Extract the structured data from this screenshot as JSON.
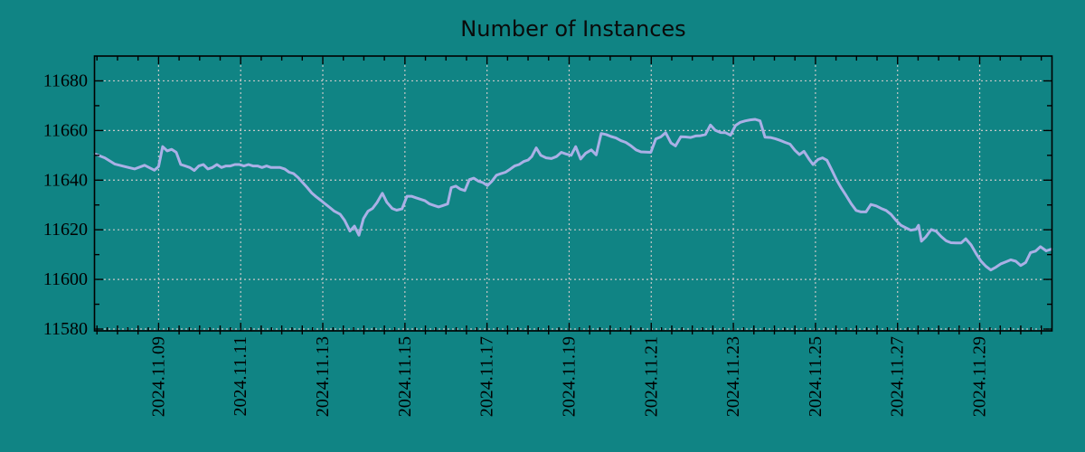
{
  "title": "Number of Instances",
  "colors": {
    "background": "#108484",
    "line": "#aab0e6",
    "grid": "#c8c8c8",
    "axis": "#000000",
    "text": "#000000"
  },
  "chart_data": {
    "type": "line",
    "title": "Number of Instances",
    "xlabel": "",
    "ylabel": "",
    "x_unit": "date (fractional day of November 2024)",
    "xlim": [
      7.45,
      30.75
    ],
    "ylim": [
      11580,
      11690
    ],
    "grid": true,
    "grid_style": "dashed",
    "legend_position": "none",
    "x_major_ticks": [
      9,
      11,
      13,
      15,
      17,
      19,
      21,
      23,
      25,
      27,
      29
    ],
    "x_tick_labels": [
      "2024.11.09",
      "2024.11.11",
      "2024.11.13",
      "2024.11.15",
      "2024.11.17",
      "2024.11.19",
      "2024.11.21",
      "2024.11.23",
      "2024.11.25",
      "2024.11.27",
      "2024.11.29"
    ],
    "x_minor_step": 0.25,
    "y_major_ticks": [
      11580,
      11600,
      11620,
      11640,
      11660,
      11680
    ],
    "y_tick_labels": [
      "11580",
      "11600",
      "11620",
      "11640",
      "11660",
      "11680"
    ],
    "y_minor_step": 10,
    "series": [
      {
        "name": "instances",
        "x": [
          7.45,
          7.69,
          7.93,
          8.17,
          8.42,
          8.66,
          8.9,
          9.0,
          9.1,
          9.21,
          9.32,
          9.43,
          9.54,
          9.65,
          9.76,
          9.87,
          9.98,
          10.09,
          10.2,
          10.31,
          10.42,
          10.53,
          10.64,
          10.75,
          10.86,
          10.97,
          11.08,
          11.19,
          11.3,
          11.41,
          11.52,
          11.63,
          11.74,
          11.85,
          11.96,
          12.07,
          12.18,
          12.29,
          12.4,
          12.51,
          12.62,
          12.73,
          12.84,
          12.95,
          13.06,
          13.17,
          13.28,
          13.42,
          13.53,
          13.66,
          13.77,
          13.88,
          13.99,
          14.1,
          14.21,
          14.32,
          14.45,
          14.56,
          14.69,
          14.8,
          14.93,
          15.05,
          15.16,
          15.27,
          15.38,
          15.49,
          15.6,
          15.71,
          15.82,
          15.93,
          16.04,
          16.13,
          16.24,
          16.35,
          16.46,
          16.57,
          16.68,
          16.79,
          16.9,
          17.01,
          17.12,
          17.23,
          17.34,
          17.45,
          17.56,
          17.67,
          17.78,
          17.89,
          18.0,
          18.09,
          18.2,
          18.31,
          18.44,
          18.57,
          18.69,
          18.81,
          18.93,
          19.05,
          19.16,
          19.28,
          19.4,
          19.54,
          19.66,
          19.78,
          19.9,
          20.02,
          20.14,
          20.26,
          20.38,
          20.51,
          20.63,
          20.75,
          20.87,
          20.99,
          21.11,
          21.23,
          21.35,
          21.48,
          21.59,
          21.72,
          21.84,
          21.96,
          22.08,
          22.2,
          22.32,
          22.44,
          22.56,
          22.69,
          22.81,
          22.93,
          23.05,
          23.17,
          23.29,
          23.41,
          23.53,
          23.65,
          23.77,
          23.9,
          24.02,
          24.14,
          24.26,
          24.38,
          24.5,
          24.61,
          24.72,
          24.85,
          24.94,
          25.06,
          25.17,
          25.28,
          25.4,
          25.51,
          25.63,
          25.75,
          25.87,
          25.99,
          26.11,
          26.23,
          26.35,
          26.48,
          26.6,
          26.72,
          26.84,
          26.96,
          27.08,
          27.2,
          27.32,
          27.45,
          27.51,
          27.58,
          27.69,
          27.82,
          27.94,
          28.06,
          28.18,
          28.3,
          28.42,
          28.55,
          28.66,
          28.79,
          28.91,
          29.03,
          29.15,
          29.27,
          29.4,
          29.52,
          29.64,
          29.76,
          29.88,
          30.0,
          30.12,
          30.24,
          30.36,
          30.48,
          30.62,
          30.75
        ],
        "y": [
          11650.5,
          11649.0,
          11646.5,
          11645.5,
          11644.5,
          11646.0,
          11644.0,
          11645.5,
          11653.5,
          11651.8,
          11652.4,
          11651.2,
          11646.3,
          11645.7,
          11645.1,
          11643.9,
          11645.7,
          11646.3,
          11644.5,
          11645.1,
          11646.3,
          11645.1,
          11645.7,
          11645.7,
          11646.3,
          11646.3,
          11645.7,
          11646.3,
          11645.7,
          11645.7,
          11645.1,
          11645.7,
          11645.1,
          11645.1,
          11645.1,
          11644.5,
          11643.2,
          11642.6,
          11641.0,
          11639.0,
          11637.0,
          11634.8,
          11633.3,
          11631.9,
          11630.4,
          11629.0,
          11627.5,
          11626.3,
          11623.8,
          11619.5,
          11621.5,
          11617.8,
          11624.5,
          11627.5,
          11628.6,
          11631.0,
          11634.7,
          11631.1,
          11628.6,
          11627.9,
          11628.4,
          11633.5,
          11633.5,
          11632.9,
          11632.3,
          11631.7,
          11630.4,
          11629.8,
          11629.2,
          11629.8,
          11630.4,
          11637.0,
          11637.6,
          11636.4,
          11635.8,
          11640.2,
          11640.8,
          11639.6,
          11639.0,
          11637.8,
          11639.6,
          11642.0,
          11642.6,
          11643.2,
          11644.4,
          11645.7,
          11646.3,
          11647.5,
          11648.1,
          11649.5,
          11653.0,
          11650.0,
          11649.0,
          11648.7,
          11649.5,
          11651.2,
          11650.5,
          11650.0,
          11653.5,
          11648.5,
          11650.8,
          11652.2,
          11650.2,
          11658.8,
          11658.4,
          11657.6,
          11657.0,
          11655.9,
          11655.2,
          11653.8,
          11652.2,
          11651.4,
          11651.3,
          11651.2,
          11656.6,
          11657.4,
          11659.1,
          11655.0,
          11653.8,
          11657.5,
          11657.4,
          11657.2,
          11657.8,
          11657.9,
          11658.4,
          11662.2,
          11660.1,
          11659.2,
          11659.1,
          11658.1,
          11662.0,
          11663.3,
          11663.9,
          11664.3,
          11664.5,
          11663.9,
          11657.3,
          11657.2,
          11656.7,
          11656.0,
          11655.2,
          11654.5,
          11652.0,
          11650.3,
          11651.6,
          11648.3,
          11646.3,
          11648.3,
          11649.0,
          11648.0,
          11644.0,
          11640.2,
          11636.8,
          11633.7,
          11630.5,
          11627.8,
          11627.2,
          11627.2,
          11630.2,
          11629.6,
          11628.6,
          11627.8,
          11626.2,
          11623.8,
          11621.8,
          11620.8,
          11619.8,
          11620.2,
          11621.8,
          11615.4,
          11617.2,
          11620.1,
          11619.4,
          11617.3,
          11615.6,
          11614.8,
          11614.7,
          11614.7,
          11616.4,
          11613.9,
          11610.5,
          11607.4,
          11605.3,
          11603.8,
          11605.0,
          11606.3,
          11607.1,
          11607.9,
          11607.3,
          11605.6,
          11606.8,
          11610.8,
          11611.4,
          11613.2,
          11611.5,
          11612.2
        ]
      }
    ]
  }
}
